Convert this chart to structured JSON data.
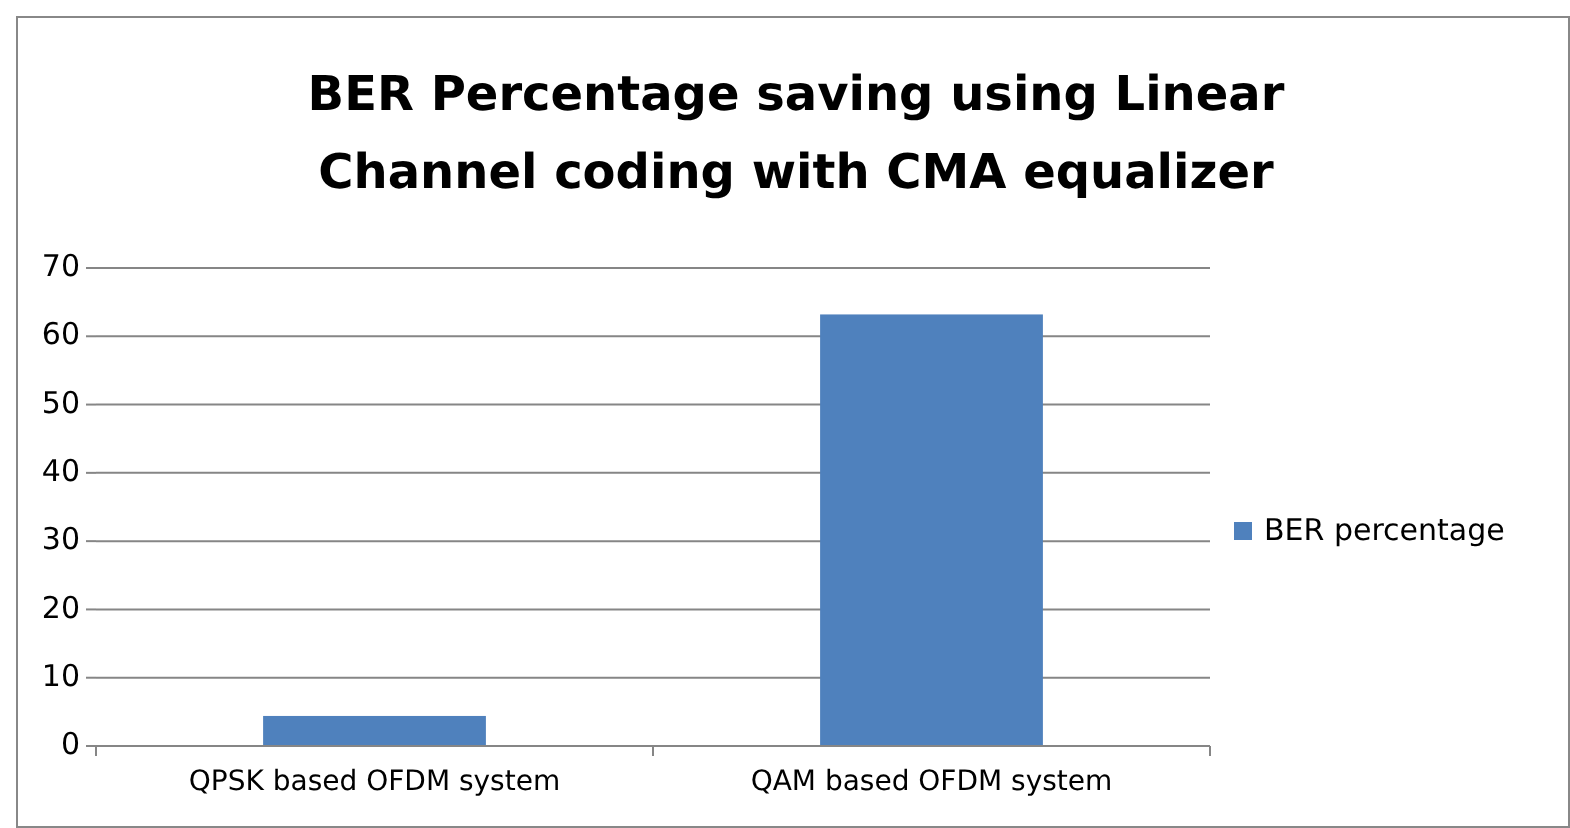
{
  "chart_data": {
    "type": "bar",
    "title": "BER Percentage saving  using Linear Channel coding with CMA equalizer",
    "categories": [
      "QPSK based OFDM system",
      "QAM based OFDM system"
    ],
    "series": [
      {
        "name": "BER percentage",
        "color": "#4f81bd",
        "values": [
          4.4,
          63.2
        ]
      }
    ],
    "ylim": [
      0,
      70
    ],
    "yticks": [
      0,
      10,
      20,
      30,
      40,
      50,
      60,
      70
    ],
    "grid": "y",
    "legend": "right"
  }
}
